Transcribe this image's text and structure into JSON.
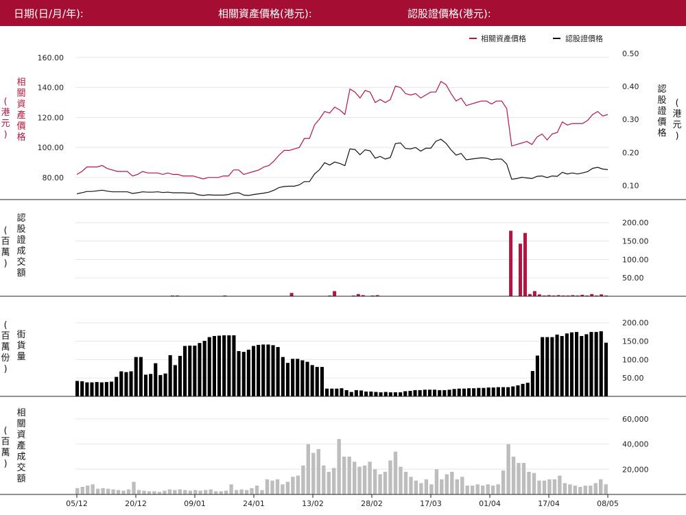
{
  "header": {
    "date_label": "日期(日/月/年):",
    "underlying_label": "相關資產價格(港元):",
    "warrant_label": "認股證價格(港元):"
  },
  "colors": {
    "header_bg": "#a50e33",
    "underlying": "#b5143f",
    "warrant": "#111111",
    "volume_gray": "#bdbdbd",
    "grid": "#e6e6e6"
  },
  "chart_data": [
    {
      "type": "line",
      "legend": [
        "相關資產價格",
        "認股證價格"
      ],
      "ylabel_left": "相關資產價格",
      "ylabel_left_unit": "(港元)",
      "ylabel_right": "認股證價格",
      "ylabel_right_unit": "(港元)",
      "yticks_left": [
        "160.00",
        "140.00",
        "120.00",
        "100.00",
        "80.00"
      ],
      "yticks_right": [
        "0.50",
        "0.40",
        "0.30",
        "0.20",
        "0.10"
      ],
      "ylim_left": [
        68,
        165
      ],
      "ylim_right": [
        0.07,
        0.51
      ],
      "series": [
        {
          "name": "相關資產價格",
          "axis": "left",
          "values": [
            82,
            84,
            87,
            87,
            87,
            88,
            86,
            85,
            84,
            84,
            84,
            81,
            82,
            84,
            83,
            83,
            83,
            82,
            83,
            82,
            82,
            81,
            81,
            81,
            80,
            79,
            80,
            80,
            80,
            81,
            81,
            85,
            85,
            82,
            83,
            84,
            85,
            87,
            88,
            91,
            95,
            98,
            98,
            99,
            100,
            106,
            106,
            115,
            119,
            124,
            123,
            127,
            125,
            122,
            139,
            137,
            133,
            138,
            137,
            130,
            132,
            130,
            132,
            141,
            140,
            136,
            135,
            136,
            133,
            135,
            137,
            137,
            144,
            142,
            136,
            131,
            133,
            128,
            129,
            130,
            131,
            131,
            129,
            131,
            131,
            126,
            101,
            102,
            103,
            104,
            102,
            107,
            109,
            105,
            109,
            110,
            117,
            115,
            116,
            116,
            116,
            118,
            122,
            124,
            121,
            122
          ]
        },
        {
          "name": "認股證價格",
          "axis": "right",
          "values": [
            0.075,
            0.078,
            0.082,
            0.082,
            0.084,
            0.086,
            0.083,
            0.081,
            0.081,
            0.081,
            0.081,
            0.076,
            0.078,
            0.081,
            0.08,
            0.08,
            0.081,
            0.079,
            0.08,
            0.078,
            0.078,
            0.078,
            0.077,
            0.077,
            0.072,
            0.07,
            0.072,
            0.071,
            0.071,
            0.071,
            0.073,
            0.077,
            0.078,
            0.071,
            0.07,
            0.073,
            0.075,
            0.077,
            0.08,
            0.086,
            0.094,
            0.097,
            0.098,
            0.098,
            0.102,
            0.112,
            0.112,
            0.135,
            0.148,
            0.169,
            0.162,
            0.171,
            0.167,
            0.16,
            0.211,
            0.209,
            0.193,
            0.208,
            0.205,
            0.183,
            0.188,
            0.18,
            0.185,
            0.227,
            0.229,
            0.212,
            0.211,
            0.215,
            0.204,
            0.213,
            0.213,
            0.234,
            0.24,
            0.228,
            0.208,
            0.192,
            0.197,
            0.178,
            0.18,
            0.182,
            0.184,
            0.183,
            0.178,
            0.18,
            0.18,
            0.165,
            0.119,
            0.121,
            0.125,
            0.123,
            0.121,
            0.128,
            0.129,
            0.124,
            0.129,
            0.128,
            0.14,
            0.135,
            0.138,
            0.135,
            0.138,
            0.142,
            0.152,
            0.155,
            0.15,
            0.148
          ]
        }
      ]
    },
    {
      "type": "bar",
      "ylabel": "認股證成交額",
      "ylabel_unit": "(百萬)",
      "yticks": [
        "200.00",
        "150.00",
        "100.00",
        "50.00"
      ],
      "ylim": [
        0,
        220
      ],
      "values": [
        1,
        1,
        1,
        1,
        1,
        1,
        1,
        1,
        1,
        1,
        1,
        1,
        1,
        1,
        1,
        1,
        1,
        1,
        1,
        1,
        2,
        2,
        1,
        1,
        1,
        1,
        1,
        1,
        1,
        1,
        1,
        2,
        1,
        1,
        1,
        1,
        1,
        1,
        1,
        1,
        1,
        1,
        1,
        1,
        1,
        9,
        1,
        1,
        1,
        1,
        1,
        1,
        1,
        2,
        14,
        1,
        1,
        1,
        2,
        6,
        3,
        1,
        2,
        3,
        1,
        1,
        1,
        1,
        1,
        1,
        1,
        1,
        1,
        1,
        1,
        1,
        1,
        1,
        1,
        1,
        1,
        1,
        1,
        1,
        1,
        1,
        1,
        1,
        1,
        1,
        1,
        178,
        1,
        143,
        172,
        6,
        14,
        5,
        2,
        3,
        2,
        3,
        2,
        2,
        3,
        2,
        4,
        2,
        6,
        2,
        5,
        2
      ]
    },
    {
      "type": "bar",
      "ylabel": "街貨量",
      "ylabel_unit": "(百萬份)",
      "yticks": [
        "200.00",
        "150.00",
        "100.00",
        "50.00"
      ],
      "ylim": [
        0,
        220
      ],
      "values": [
        42,
        41,
        38,
        38,
        39,
        38,
        39,
        40,
        53,
        68,
        66,
        68,
        107,
        107,
        59,
        61,
        90,
        58,
        62,
        112,
        85,
        110,
        137,
        138,
        138,
        145,
        151,
        161,
        164,
        165,
        166,
        166,
        166,
        123,
        121,
        127,
        137,
        140,
        141,
        141,
        139,
        134,
        107,
        91,
        102,
        102,
        98,
        94,
        85,
        80,
        80,
        21,
        21,
        21,
        22,
        17,
        12,
        17,
        16,
        13,
        13,
        12,
        11,
        12,
        11,
        11,
        11,
        14,
        15,
        17,
        17,
        18,
        18,
        18,
        17,
        17,
        18,
        20,
        21,
        21,
        22,
        22,
        23,
        23,
        24,
        24,
        25,
        25,
        25,
        27,
        30,
        34,
        37,
        69,
        111,
        161,
        161,
        161,
        168,
        164,
        171,
        174,
        175,
        164,
        169,
        175,
        175,
        177,
        146
      ]
    },
    {
      "type": "bar",
      "ylabel": "相關資產成交額",
      "ylabel_unit": "(百萬)",
      "yticks": [
        "60,000",
        "40,000",
        "20,000"
      ],
      "ylim": [
        0,
        67000
      ],
      "xticks": [
        "05/12",
        "20/12",
        "09/01",
        "24/01",
        "13/02",
        "28/02",
        "17/03",
        "01/04",
        "17/04",
        "08/05"
      ],
      "values": [
        5000,
        6000,
        7000,
        8000,
        4500,
        5000,
        4500,
        4000,
        3500,
        3000,
        4000,
        10000,
        3500,
        3000,
        2500,
        2500,
        2000,
        3000,
        4000,
        3500,
        4000,
        3500,
        3000,
        3500,
        3000,
        3500,
        4000,
        2500,
        2500,
        3000,
        8000,
        3500,
        4000,
        3500,
        5000,
        7000,
        3500,
        12000,
        11000,
        12000,
        8000,
        10000,
        14000,
        15000,
        23000,
        40000,
        33000,
        36000,
        23000,
        18000,
        21000,
        44000,
        30000,
        30000,
        26000,
        22000,
        23000,
        26000,
        20000,
        16000,
        18000,
        27000,
        34000,
        22000,
        18000,
        14000,
        11000,
        9000,
        12000,
        8000,
        20000,
        12000,
        16000,
        18000,
        12000,
        14000,
        7000,
        7000,
        8000,
        7000,
        8000,
        7000,
        8000,
        19000,
        40000,
        30000,
        25000,
        25000,
        18000,
        17000,
        11000,
        11000,
        12000,
        12000,
        15000,
        9000,
        8000,
        7000,
        6000,
        7000,
        7000,
        9000,
        12000,
        8000
      ]
    }
  ]
}
